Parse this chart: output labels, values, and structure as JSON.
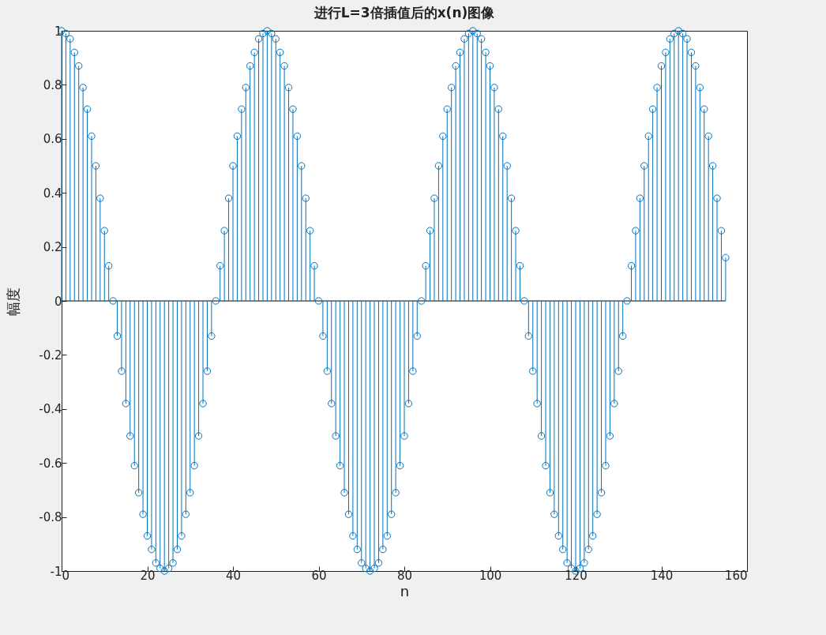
{
  "chart_data": {
    "type": "lollipop",
    "title": "进行L=3倍插值后的x(n)图像",
    "xlabel": "n",
    "ylabel": "幅度",
    "marker": "circle",
    "xlim": [
      0,
      160
    ],
    "xticks": [
      0,
      20,
      40,
      60,
      80,
      100,
      120,
      140,
      160
    ],
    "ylim": [
      -1,
      1
    ],
    "yticks": [
      -1,
      -0.8,
      -0.6,
      -0.4,
      -0.2,
      0,
      0.2,
      0.4,
      0.6,
      0.8,
      1
    ],
    "x": [
      0,
      1,
      2,
      3,
      4,
      5,
      6,
      7,
      8,
      9,
      10,
      11,
      12,
      13,
      14,
      15,
      16,
      17,
      18,
      19,
      20,
      21,
      22,
      23,
      24,
      25,
      26,
      27,
      28,
      29,
      30,
      31,
      32,
      33,
      34,
      35,
      36,
      37,
      38,
      39,
      40,
      41,
      42,
      43,
      44,
      45,
      46,
      47,
      48,
      49,
      50,
      51,
      52,
      53,
      54,
      55,
      56,
      57,
      58,
      59,
      60,
      61,
      62,
      63,
      64,
      65,
      66,
      67,
      68,
      69,
      70,
      71,
      72,
      73,
      74,
      75,
      76,
      77,
      78,
      79,
      80,
      81,
      82,
      83,
      84,
      85,
      86,
      87,
      88,
      89,
      90,
      91,
      92,
      93,
      94,
      95,
      96,
      97,
      98,
      99,
      100,
      101,
      102,
      103,
      104,
      105,
      106,
      107,
      108,
      109,
      110,
      111,
      112,
      113,
      114,
      115,
      116,
      117,
      118,
      119,
      120,
      121,
      122,
      123,
      124,
      125,
      126,
      127,
      128,
      129,
      130,
      131,
      132,
      133,
      134,
      135,
      136,
      137,
      138,
      139,
      140,
      141,
      142,
      143,
      144,
      145,
      146,
      147,
      148,
      149,
      150,
      151,
      152,
      153,
      154,
      155
    ],
    "series": [
      {
        "color": "#0072bd",
        "values": [
          1,
          0.99,
          0.97,
          0.92,
          0.87,
          0.79,
          0.71,
          0.61,
          0.5,
          0.38,
          0.26,
          0.13,
          0,
          -0.13,
          -0.26,
          -0.38,
          -0.5,
          -0.61,
          -0.71,
          -0.79,
          -0.87,
          -0.92,
          -0.97,
          -0.99,
          -1,
          -0.99,
          -0.97,
          -0.92,
          -0.87,
          -0.79,
          -0.71,
          -0.61,
          -0.5,
          -0.38,
          -0.26,
          -0.13,
          0,
          0.13,
          0.26,
          0.38,
          0.5,
          0.61,
          0.71,
          0.79,
          0.87,
          0.92,
          0.97,
          0.99,
          1,
          0.99,
          0.97,
          0.92,
          0.87,
          0.79,
          0.71,
          0.61,
          0.5,
          0.38,
          0.26,
          0.13,
          0,
          -0.13,
          -0.26,
          -0.38,
          -0.5,
          -0.61,
          -0.71,
          -0.79,
          -0.87,
          -0.92,
          -0.97,
          -0.99,
          -1,
          -0.99,
          -0.97,
          -0.92,
          -0.87,
          -0.79,
          -0.71,
          -0.61,
          -0.5,
          -0.38,
          -0.26,
          -0.13,
          0,
          0.13,
          0.26,
          0.38,
          0.5,
          0.61,
          0.71,
          0.79,
          0.87,
          0.92,
          0.97,
          0.99,
          1,
          0.99,
          0.97,
          0.92,
          0.87,
          0.79,
          0.71,
          0.61,
          0.5,
          0.38,
          0.26,
          0.13,
          0,
          -0.13,
          -0.26,
          -0.38,
          -0.5,
          -0.61,
          -0.71,
          -0.79,
          -0.87,
          -0.92,
          -0.97,
          -0.99,
          -1,
          -0.99,
          -0.97,
          -0.92,
          -0.87,
          -0.79,
          -0.71,
          -0.61,
          -0.5,
          -0.38,
          -0.26,
          -0.13,
          0,
          0.13,
          0.26,
          0.38,
          0.5,
          0.61,
          0.71,
          0.79,
          0.87,
          0.92,
          0.97,
          0.99,
          1,
          0.99,
          0.97,
          0.92,
          0.87,
          0.79,
          0.71,
          0.61,
          0.5,
          0.38,
          0.26,
          0.16
        ]
      }
    ]
  }
}
